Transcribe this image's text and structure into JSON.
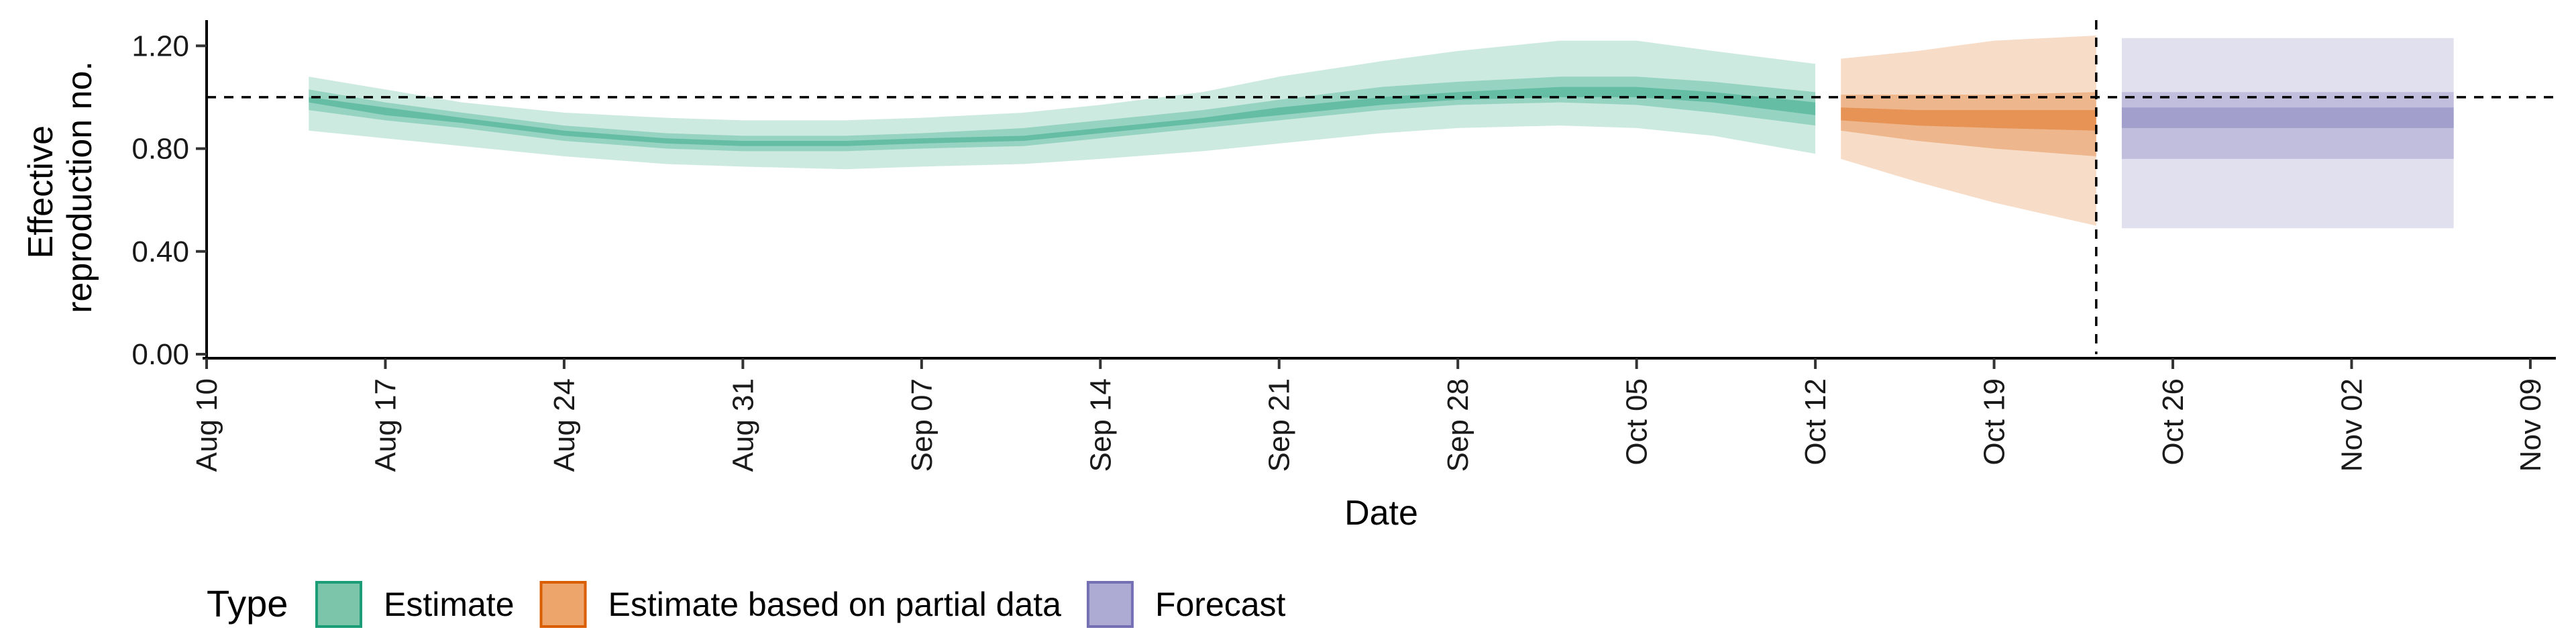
{
  "chart_data": {
    "type": "area",
    "title": "",
    "xlabel": "Date",
    "ylabel": [
      "Effective",
      "reproduction no."
    ],
    "ylim": [
      0,
      1.3
    ],
    "xlim": [
      "2020-08-10",
      "2020-11-10"
    ],
    "y_ticks": [
      {
        "value": 0.0,
        "label": "0.00"
      },
      {
        "value": 0.4,
        "label": "0.40"
      },
      {
        "value": 0.8,
        "label": "0.80"
      },
      {
        "value": 1.2,
        "label": "1.20"
      }
    ],
    "x_ticks": [
      {
        "date": "2020-08-10",
        "label": "Aug 10"
      },
      {
        "date": "2020-08-17",
        "label": "Aug 17"
      },
      {
        "date": "2020-08-24",
        "label": "Aug 24"
      },
      {
        "date": "2020-08-31",
        "label": "Aug 31"
      },
      {
        "date": "2020-09-07",
        "label": "Sep 07"
      },
      {
        "date": "2020-09-14",
        "label": "Sep 14"
      },
      {
        "date": "2020-09-21",
        "label": "Sep 21"
      },
      {
        "date": "2020-09-28",
        "label": "Sep 28"
      },
      {
        "date": "2020-10-05",
        "label": "Oct 05"
      },
      {
        "date": "2020-10-12",
        "label": "Oct 12"
      },
      {
        "date": "2020-10-19",
        "label": "Oct 19"
      },
      {
        "date": "2020-10-26",
        "label": "Oct 26"
      },
      {
        "date": "2020-11-02",
        "label": "Nov 02"
      },
      {
        "date": "2020-11-09",
        "label": "Nov 09"
      }
    ],
    "reference_line_y": 1.0,
    "reference_line_date": "2020-10-23",
    "grid": false,
    "legend": {
      "title": "Type",
      "position": "bottom",
      "entries": [
        {
          "label": "Estimate",
          "fill": "#7cc5aa",
          "stroke": "#1b9e77"
        },
        {
          "label": "Estimate based on partial data",
          "fill": "#eda56b",
          "stroke": "#d95f02"
        },
        {
          "label": "Forecast",
          "fill": "#adaad3",
          "stroke": "#7570b3"
        }
      ]
    },
    "series": [
      {
        "name": "Estimate",
        "color": "#1b9e77",
        "points": [
          {
            "date": "2020-08-14",
            "lower90": 0.87,
            "lower50": 0.95,
            "lower20": 0.98,
            "upper20": 1.0,
            "upper50": 1.03,
            "upper90": 1.08
          },
          {
            "date": "2020-08-17",
            "lower90": 0.84,
            "lower50": 0.91,
            "lower20": 0.93,
            "upper20": 0.96,
            "upper50": 0.98,
            "upper90": 1.03
          },
          {
            "date": "2020-08-20",
            "lower90": 0.81,
            "lower50": 0.88,
            "lower20": 0.9,
            "upper20": 0.92,
            "upper50": 0.94,
            "upper90": 0.98
          },
          {
            "date": "2020-08-24",
            "lower90": 0.77,
            "lower50": 0.83,
            "lower20": 0.85,
            "upper20": 0.87,
            "upper50": 0.89,
            "upper90": 0.94
          },
          {
            "date": "2020-08-28",
            "lower90": 0.74,
            "lower50": 0.8,
            "lower20": 0.82,
            "upper20": 0.84,
            "upper50": 0.86,
            "upper90": 0.92
          },
          {
            "date": "2020-08-31",
            "lower90": 0.73,
            "lower50": 0.79,
            "lower20": 0.81,
            "upper20": 0.83,
            "upper50": 0.85,
            "upper90": 0.91
          },
          {
            "date": "2020-09-04",
            "lower90": 0.72,
            "lower50": 0.79,
            "lower20": 0.81,
            "upper20": 0.83,
            "upper50": 0.85,
            "upper90": 0.91
          },
          {
            "date": "2020-09-07",
            "lower90": 0.73,
            "lower50": 0.8,
            "lower20": 0.82,
            "upper20": 0.84,
            "upper50": 0.86,
            "upper90": 0.92
          },
          {
            "date": "2020-09-11",
            "lower90": 0.74,
            "lower50": 0.81,
            "lower20": 0.83,
            "upper20": 0.85,
            "upper50": 0.88,
            "upper90": 0.94
          },
          {
            "date": "2020-09-14",
            "lower90": 0.76,
            "lower50": 0.84,
            "lower20": 0.86,
            "upper20": 0.88,
            "upper50": 0.91,
            "upper90": 0.97
          },
          {
            "date": "2020-09-18",
            "lower90": 0.79,
            "lower50": 0.88,
            "lower20": 0.9,
            "upper20": 0.92,
            "upper50": 0.95,
            "upper90": 1.02
          },
          {
            "date": "2020-09-21",
            "lower90": 0.82,
            "lower50": 0.91,
            "lower20": 0.93,
            "upper20": 0.96,
            "upper50": 0.99,
            "upper90": 1.08
          },
          {
            "date": "2020-09-25",
            "lower90": 0.86,
            "lower50": 0.95,
            "lower20": 0.97,
            "upper20": 1.0,
            "upper50": 1.04,
            "upper90": 1.14
          },
          {
            "date": "2020-09-28",
            "lower90": 0.88,
            "lower50": 0.97,
            "lower20": 0.99,
            "upper20": 1.02,
            "upper50": 1.06,
            "upper90": 1.18
          },
          {
            "date": "2020-10-02",
            "lower90": 0.89,
            "lower50": 0.98,
            "lower20": 1.0,
            "upper20": 1.04,
            "upper50": 1.08,
            "upper90": 1.22
          },
          {
            "date": "2020-10-05",
            "lower90": 0.88,
            "lower50": 0.97,
            "lower20": 1.0,
            "upper20": 1.04,
            "upper50": 1.08,
            "upper90": 1.22
          },
          {
            "date": "2020-10-08",
            "lower90": 0.85,
            "lower50": 0.94,
            "lower20": 0.98,
            "upper20": 1.02,
            "upper50": 1.06,
            "upper90": 1.18
          },
          {
            "date": "2020-10-12",
            "lower90": 0.78,
            "lower50": 0.89,
            "lower20": 0.93,
            "upper20": 0.98,
            "upper50": 1.02,
            "upper90": 1.13
          }
        ]
      },
      {
        "name": "Estimate based on partial data",
        "color": "#d95f02",
        "points": [
          {
            "date": "2020-10-13",
            "lower90": 0.76,
            "lower50": 0.87,
            "lower20": 0.91,
            "upper20": 0.96,
            "upper50": 1.01,
            "upper90": 1.15
          },
          {
            "date": "2020-10-16",
            "lower90": 0.67,
            "lower50": 0.83,
            "lower20": 0.89,
            "upper20": 0.95,
            "upper50": 1.01,
            "upper90": 1.18
          },
          {
            "date": "2020-10-19",
            "lower90": 0.59,
            "lower50": 0.8,
            "lower20": 0.88,
            "upper20": 0.95,
            "upper50": 1.01,
            "upper90": 1.22
          },
          {
            "date": "2020-10-23",
            "lower90": 0.5,
            "lower50": 0.77,
            "lower20": 0.87,
            "upper20": 0.95,
            "upper50": 1.02,
            "upper90": 1.24
          }
        ]
      },
      {
        "name": "Forecast",
        "color": "#7570b3",
        "points": [
          {
            "date": "2020-10-24",
            "lower90": 0.49,
            "lower50": 0.76,
            "lower20": 0.88,
            "upper20": 0.96,
            "upper50": 1.02,
            "upper90": 1.23
          },
          {
            "date": "2020-11-06",
            "lower90": 0.49,
            "lower50": 0.76,
            "lower20": 0.88,
            "upper20": 0.96,
            "upper50": 1.02,
            "upper90": 1.23
          }
        ]
      }
    ]
  }
}
